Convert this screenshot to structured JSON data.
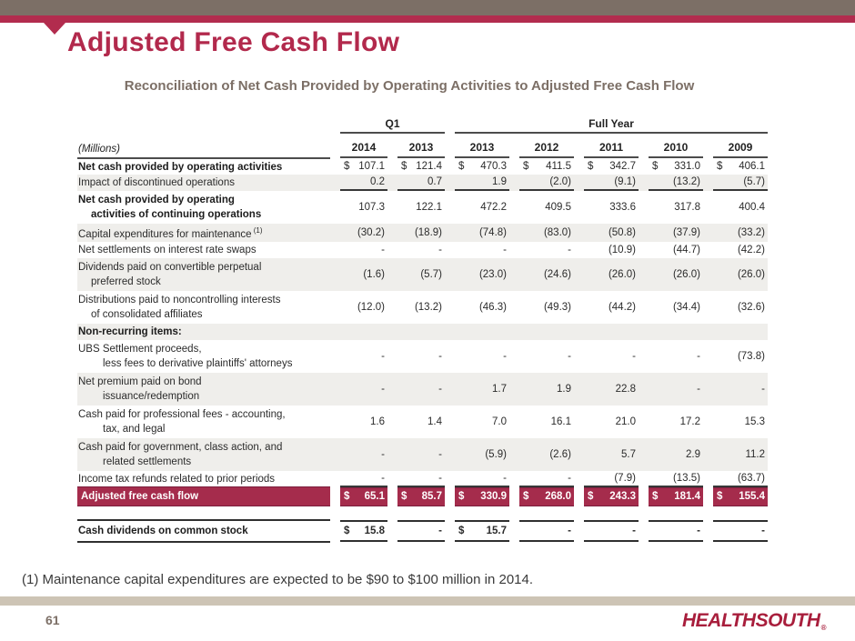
{
  "slide": {
    "title": "Adjusted Free Cash Flow",
    "subtitle": "Reconciliation of Net Cash Provided by Operating Activities to Adjusted Free Cash Flow",
    "footnote": "(1) Maintenance capital expenditures are expected to be $90 to $100 million in 2014.",
    "page_number": "61",
    "logo_text": "HEALTHSOUTH",
    "logo_mark": "®"
  },
  "colors": {
    "accent_crimson": "#B22C4E",
    "title_crimson": "#B2294C",
    "total_row_crimson": "#A52C4C",
    "bar_brown": "#7C6F66",
    "bar_beige": "#CDC4B5",
    "row_shade_gray": "#EFEEEB",
    "logo_crimson": "#A81E3C"
  },
  "table": {
    "units_label": "(Millions)",
    "group_headers": [
      {
        "label": "Q1",
        "span": 2
      },
      {
        "label": "Full Year",
        "span": 5
      }
    ],
    "columns": [
      "2014",
      "2013",
      "2013",
      "2012",
      "2011",
      "2010",
      "2009"
    ],
    "rows": [
      {
        "label": "Net cash provided by operating activities",
        "bold": true,
        "dollar": true,
        "values": [
          "107.1",
          "121.4",
          "470.3",
          "411.5",
          "342.7",
          "331.0",
          "406.1"
        ]
      },
      {
        "label": "Impact of discontinued operations",
        "shaded": true,
        "rule_below": true,
        "values": [
          "0.2",
          "0.7",
          "1.9",
          "(2.0)",
          "(9.1)",
          "(13.2)",
          "(5.7)"
        ]
      },
      {
        "label": "Net cash provided by operating",
        "label2": "activities of continuing operations",
        "indent2": 1,
        "bold": true,
        "values": [
          "107.3",
          "122.1",
          "472.2",
          "409.5",
          "333.6",
          "317.8",
          "400.4"
        ]
      },
      {
        "label": "Capital expenditures for maintenance",
        "sup": "(1)",
        "shaded": true,
        "values": [
          "(30.2)",
          "(18.9)",
          "(74.8)",
          "(83.0)",
          "(50.8)",
          "(37.9)",
          "(33.2)"
        ]
      },
      {
        "label": "Net settlements on interest rate swaps",
        "values": [
          "-",
          "-",
          "-",
          "-",
          "(10.9)",
          "(44.7)",
          "(42.2)"
        ]
      },
      {
        "label": "Dividends paid on convertible perpetual",
        "label2": "preferred stock",
        "indent2": 1,
        "shaded": true,
        "values": [
          "(1.6)",
          "(5.7)",
          "(23.0)",
          "(24.6)",
          "(26.0)",
          "(26.0)",
          "(26.0)"
        ]
      },
      {
        "label": "Distributions paid to noncontrolling interests",
        "label2": "of consolidated affiliates",
        "indent2": 1,
        "values": [
          "(12.0)",
          "(13.2)",
          "(46.3)",
          "(49.3)",
          "(44.2)",
          "(34.4)",
          "(32.6)"
        ]
      },
      {
        "label": "Non-recurring items:",
        "bold": true,
        "section": true,
        "shaded": true
      },
      {
        "label": "UBS Settlement proceeds,",
        "label2": "less fees to derivative plaintiffs' attorneys",
        "indent2": 2,
        "values": [
          "-",
          "-",
          "-",
          "-",
          "-",
          "-",
          "(73.8)"
        ]
      },
      {
        "label": "Net premium paid on bond",
        "label2": "issuance/redemption",
        "indent2": 2,
        "shaded": true,
        "values": [
          "-",
          "-",
          "1.7",
          "1.9",
          "22.8",
          "-",
          "-"
        ]
      },
      {
        "label": "Cash paid for professional fees - accounting,",
        "label2": "tax, and legal",
        "indent2": 2,
        "values": [
          "1.6",
          "1.4",
          "7.0",
          "16.1",
          "21.0",
          "17.2",
          "15.3"
        ]
      },
      {
        "label": "Cash paid for government, class action, and",
        "label2": "related settlements",
        "indent2": 2,
        "shaded": true,
        "values": [
          "-",
          "-",
          "(5.9)",
          "(2.6)",
          "5.7",
          "2.9",
          "11.2"
        ]
      },
      {
        "label": "Income tax refunds related to prior periods",
        "rule_below": true,
        "values": [
          "-",
          "-",
          "-",
          "-",
          "(7.9)",
          "(13.5)",
          "(63.7)"
        ]
      },
      {
        "label": "Adjusted free cash flow",
        "total": true,
        "dollar": true,
        "spacer_after": true,
        "values": [
          "65.1",
          "85.7",
          "330.9",
          "268.0",
          "243.3",
          "181.4",
          "155.4"
        ]
      },
      {
        "label": "Cash dividends on common stock",
        "divrow": true,
        "bold": true,
        "dollar": [
          true,
          false,
          true,
          false,
          false,
          false,
          false
        ],
        "values": [
          "15.8",
          "-",
          "15.7",
          "-",
          "-",
          "-",
          "-"
        ]
      }
    ]
  }
}
